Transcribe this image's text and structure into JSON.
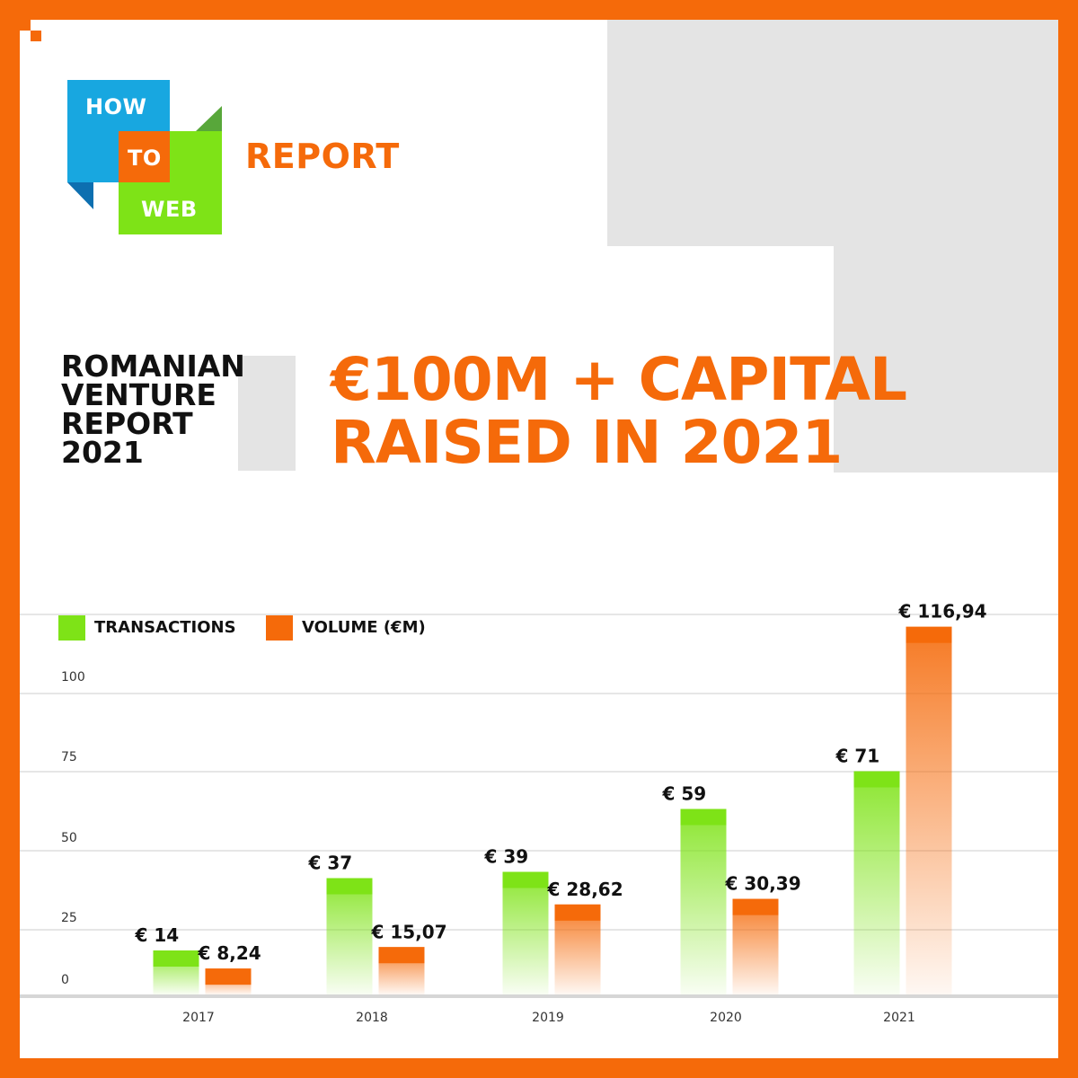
{
  "logo": {
    "line1": "HOW",
    "line2": "TO",
    "line3": "WEB"
  },
  "header": {
    "label": "REPORT"
  },
  "subtitle": {
    "lines": [
      "ROMANIAN",
      "VENTURE",
      "REPORT",
      "2021"
    ]
  },
  "headline": {
    "lines": [
      "€100M + CAPITAL",
      "RAISED IN 2021"
    ]
  },
  "colors": {
    "accent": "#f56a0a",
    "green": "#7ee317",
    "blue": "#18a7e0",
    "grey": "#e4e4e4"
  },
  "chart_data": {
    "type": "bar",
    "categories": [
      "2017",
      "2018",
      "2019",
      "2020",
      "2021"
    ],
    "series": [
      {
        "name": "TRANSACTIONS",
        "color": "#7ee317",
        "values": [
          14,
          37,
          39,
          59,
          71
        ],
        "labels": [
          "€ 14",
          "€ 37",
          "€ 39",
          "€ 59",
          "€ 71"
        ]
      },
      {
        "name": "VOLUME (€M)",
        "color": "#f56a0a",
        "values": [
          8.24,
          15.07,
          28.62,
          30.39,
          116.94
        ],
        "labels": [
          "€ 8,24",
          "€ 15,07",
          "€ 28,62",
          "€ 30,39",
          "€ 116,94"
        ]
      }
    ],
    "yticks": [
      0,
      25,
      50,
      75,
      100
    ],
    "ylim": [
      0,
      120
    ],
    "grid": true,
    "legend_position": "top-left"
  }
}
